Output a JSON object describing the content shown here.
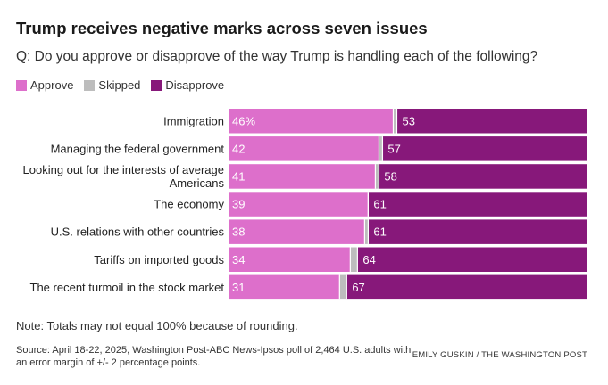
{
  "title": "Trump receives negative marks across seven issues",
  "subtitle": "Q: Do you approve or disapprove of the way Trump is handling each of the following?",
  "legend": [
    {
      "label": "Approve",
      "color": "#dd6fcb"
    },
    {
      "label": "Skipped",
      "color": "#bdbdbd"
    },
    {
      "label": "Disapprove",
      "color": "#87187a"
    }
  ],
  "chart_data": {
    "type": "bar",
    "orientation": "horizontal",
    "stacked": true,
    "categories": [
      "Immigration",
      "Managing the federal government",
      "Looking out for the interests of average Americans",
      "The economy",
      "U.S. relations with other countries",
      "Tariffs on imported goods",
      "The recent turmoil in the stock market"
    ],
    "category_lines": [
      [
        "Immigration"
      ],
      [
        "Managing the federal government"
      ],
      [
        "Looking out for the interests of average",
        "Americans"
      ],
      [
        "The economy"
      ],
      [
        "U.S. relations with other countries"
      ],
      [
        "Tariffs on imported goods"
      ],
      [
        "The recent turmoil in the stock market"
      ]
    ],
    "series": [
      {
        "name": "Approve",
        "color": "#dd6fcb",
        "values": [
          46,
          42,
          41,
          39,
          38,
          34,
          31
        ],
        "labels": [
          "46%",
          "42",
          "41",
          "39",
          "38",
          "34",
          "31"
        ]
      },
      {
        "name": "Skipped",
        "color": "#bdbdbd",
        "values": [
          1,
          1,
          1,
          0,
          1,
          2,
          2
        ]
      },
      {
        "name": "Disapprove",
        "color": "#87187a",
        "values": [
          53,
          57,
          58,
          61,
          61,
          64,
          67
        ],
        "labels": [
          "53",
          "57",
          "58",
          "61",
          "61",
          "64",
          "67"
        ]
      }
    ],
    "xlim": [
      0,
      100
    ]
  },
  "note": "Note: Totals may not equal 100% because of rounding.",
  "source": "Source: April 18-22, 2025, Washington Post-ABC News-Ipsos poll of 2,464 U.S. adults with an error margin of +/- 2 percentage points.",
  "credit": "EMILY GUSKIN / THE WASHINGTON POST"
}
